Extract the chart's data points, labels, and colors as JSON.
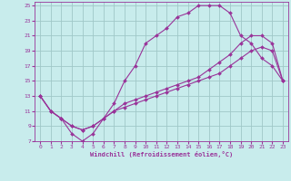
{
  "xlabel": "Windchill (Refroidissement éolien,°C)",
  "bg_color": "#c8ecec",
  "grid_color": "#a0c8c8",
  "line_color": "#993399",
  "xlim": [
    -0.5,
    23.5
  ],
  "ylim": [
    7,
    25.5
  ],
  "xticks": [
    0,
    1,
    2,
    3,
    4,
    5,
    6,
    7,
    8,
    9,
    10,
    11,
    12,
    13,
    14,
    15,
    16,
    17,
    18,
    19,
    20,
    21,
    22,
    23
  ],
  "yticks": [
    7,
    9,
    11,
    13,
    15,
    17,
    19,
    21,
    23,
    25
  ],
  "line1_x": [
    0,
    1,
    2,
    3,
    4,
    5,
    6,
    7,
    8,
    9,
    10,
    11,
    12,
    13,
    14,
    15,
    16,
    17,
    18,
    19,
    20,
    21,
    22,
    23
  ],
  "line1_y": [
    13,
    11,
    10,
    8,
    7,
    8,
    10,
    12,
    15,
    17,
    20,
    21,
    22,
    23.5,
    24,
    25,
    25,
    25,
    24,
    21,
    20,
    18,
    17,
    15
  ],
  "line2_x": [
    0,
    1,
    2,
    3,
    4,
    5,
    6,
    7,
    8,
    9,
    10,
    11,
    12,
    13,
    14,
    15,
    16,
    17,
    18,
    19,
    20,
    21,
    22,
    23
  ],
  "line2_y": [
    13,
    11,
    10,
    9,
    8.5,
    9,
    10,
    11,
    12,
    12.5,
    13,
    13.5,
    14,
    14.5,
    15,
    15.5,
    16.5,
    17.5,
    18.5,
    20,
    21,
    21,
    20,
    15
  ],
  "line3_x": [
    0,
    1,
    2,
    3,
    4,
    5,
    6,
    7,
    8,
    9,
    10,
    11,
    12,
    13,
    14,
    15,
    16,
    17,
    18,
    19,
    20,
    21,
    22,
    23
  ],
  "line3_y": [
    13,
    11,
    10,
    9,
    8.5,
    9,
    10,
    11,
    11.5,
    12,
    12.5,
    13,
    13.5,
    14,
    14.5,
    15,
    15.5,
    16,
    17,
    18,
    19,
    19.5,
    19,
    15
  ]
}
